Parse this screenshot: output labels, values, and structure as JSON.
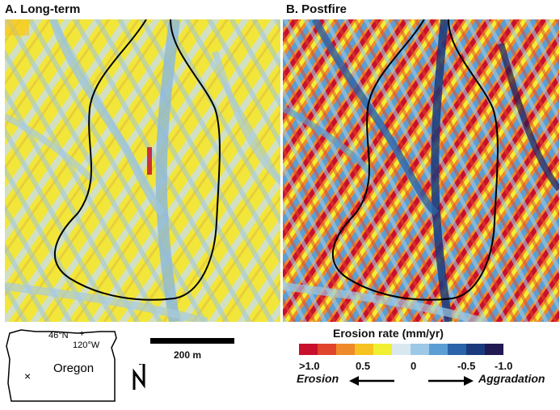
{
  "panels": {
    "a_title": "A. Long-term",
    "b_title": "B. Postfire"
  },
  "locator": {
    "state": "Oregon",
    "lat_label": "46°N",
    "lon_label": "120°W",
    "site_marker": "×"
  },
  "scale": {
    "label": "200 m"
  },
  "north": {
    "label": "N"
  },
  "legend": {
    "title": "Erosion rate (mm/yr)",
    "colors": [
      "#c8102e",
      "#e0452b",
      "#ef8a2a",
      "#f6c21f",
      "#f1ef33",
      "#d9e8ef",
      "#9cc9e6",
      "#5b9ed3",
      "#2a63a8",
      "#1a3a7c",
      "#221a52"
    ],
    "tick_labels": [
      ">1.0",
      "0.5",
      "0",
      "-0.5",
      "-1.0"
    ],
    "erosion_label": "Erosion",
    "aggradation_label": "Aggradation"
  },
  "icons": {
    "arrow_left": "left-arrow-icon",
    "arrow_right": "right-arrow-icon",
    "north": "north-arrow-icon"
  }
}
